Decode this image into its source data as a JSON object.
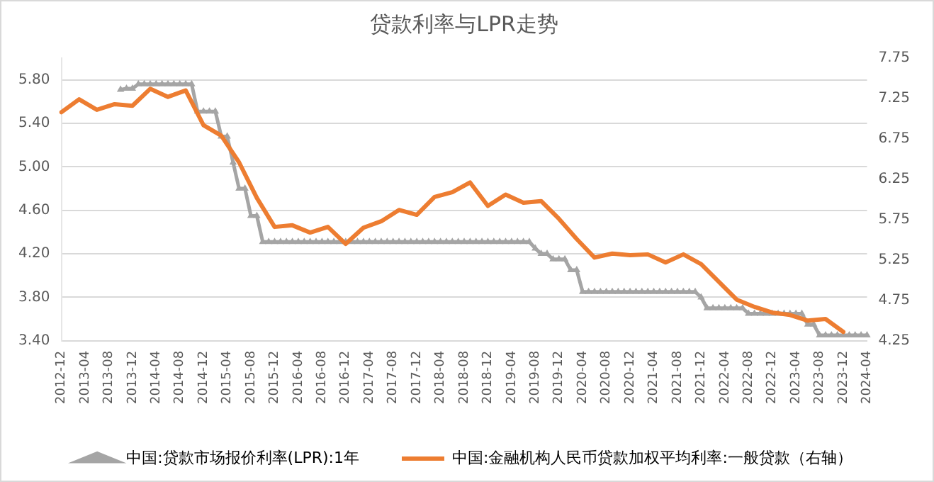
{
  "chart_data": {
    "type": "line",
    "title": "贷款利率与LPR走势",
    "categories": [
      "2012-12",
      null,
      null,
      null,
      "2013-04",
      null,
      null,
      null,
      "2013-08",
      null,
      null,
      null,
      "2013-12",
      null,
      null,
      null,
      "2014-04",
      null,
      null,
      null,
      "2014-08",
      null,
      null,
      null,
      "2014-12",
      null,
      null,
      null,
      "2015-04",
      null,
      null,
      null,
      "2015-08",
      null,
      null,
      null,
      "2015-12",
      null,
      null,
      null,
      "2016-04",
      null,
      null,
      null,
      "2016-08",
      null,
      null,
      null,
      "2016-12",
      null,
      null,
      null,
      "2017-04",
      null,
      null,
      null,
      "2017-08",
      null,
      null,
      null,
      "2017-12",
      null,
      null,
      null,
      "2018-04",
      null,
      null,
      null,
      "2018-08",
      null,
      null,
      null,
      "2018-12",
      null,
      null,
      null,
      "2019-04",
      null,
      null,
      null,
      "2019-08",
      null,
      null,
      null,
      "2019-12",
      null,
      null,
      null,
      "2020-04",
      null,
      null,
      null,
      "2020-08",
      null,
      null,
      null,
      "2020-12",
      null,
      null,
      null,
      "2021-04",
      null,
      null,
      null,
      "2021-08",
      null,
      null,
      null,
      "2021-12",
      null,
      null,
      null,
      "2022-04",
      null,
      null,
      null,
      "2022-08",
      null,
      null,
      null,
      "2022-12",
      null,
      null,
      null,
      "2023-04",
      null,
      null,
      null,
      "2023-08",
      null,
      null,
      null,
      "2023-12",
      null,
      null,
      null,
      "2024-04"
    ],
    "series": [
      {
        "name": "中国:贷款市场报价利率(LPR):1年",
        "color": "#a5a5a5",
        "marker": "triangle",
        "values": [
          null,
          null,
          null,
          null,
          null,
          null,
          null,
          null,
          null,
          null,
          5.71,
          5.72,
          5.72,
          5.76,
          5.76,
          5.76,
          5.76,
          5.76,
          5.76,
          5.76,
          5.76,
          5.76,
          5.76,
          5.51,
          5.51,
          5.51,
          5.51,
          5.28,
          5.28,
          5.04,
          4.8,
          4.8,
          4.55,
          4.55,
          4.31,
          4.31,
          4.31,
          4.31,
          4.31,
          4.31,
          4.31,
          4.31,
          4.31,
          4.31,
          4.31,
          4.31,
          4.31,
          4.31,
          4.31,
          4.31,
          4.31,
          4.31,
          4.31,
          4.31,
          4.31,
          4.31,
          4.31,
          4.31,
          4.31,
          4.31,
          4.31,
          4.31,
          4.31,
          4.31,
          4.31,
          4.31,
          4.31,
          4.31,
          4.31,
          4.31,
          4.31,
          4.31,
          4.31,
          4.31,
          4.31,
          4.31,
          4.31,
          4.31,
          4.31,
          4.31,
          4.25,
          4.2,
          4.2,
          4.15,
          4.15,
          4.15,
          4.05,
          4.05,
          3.85,
          3.85,
          3.85,
          3.85,
          3.85,
          3.85,
          3.85,
          3.85,
          3.85,
          3.85,
          3.85,
          3.85,
          3.85,
          3.85,
          3.85,
          3.85,
          3.85,
          3.85,
          3.85,
          3.85,
          3.8,
          3.7,
          3.7,
          3.7,
          3.7,
          3.7,
          3.7,
          3.7,
          3.65,
          3.65,
          3.65,
          3.65,
          3.65,
          3.65,
          3.65,
          3.65,
          3.65,
          3.65,
          3.55,
          3.55,
          3.45,
          3.45,
          3.45,
          3.45,
          3.45,
          3.45,
          3.45,
          3.45,
          3.45
        ]
      },
      {
        "name": "中国:金融机构人民币贷款加权平均利率:一般贷款（右轴）",
        "color": "#ed7d31",
        "marker": "none",
        "axis": "y2",
        "values": [
          7.08,
          null,
          null,
          7.24,
          null,
          null,
          7.11,
          null,
          null,
          7.18,
          null,
          null,
          7.16,
          null,
          null,
          7.37,
          null,
          null,
          7.27,
          null,
          null,
          7.35,
          null,
          null,
          6.92,
          null,
          null,
          6.79,
          null,
          null,
          6.46,
          null,
          null,
          6.02,
          null,
          null,
          5.66,
          null,
          null,
          5.68,
          null,
          null,
          5.59,
          null,
          null,
          5.66,
          null,
          null,
          5.45,
          null,
          null,
          5.65,
          null,
          null,
          5.73,
          null,
          null,
          5.87,
          null,
          null,
          5.81,
          null,
          null,
          6.03,
          null,
          null,
          6.09,
          null,
          null,
          6.21,
          null,
          null,
          5.92,
          null,
          null,
          6.06,
          null,
          null,
          5.96,
          null,
          null,
          5.98,
          null,
          null,
          5.76,
          null,
          null,
          5.51,
          null,
          null,
          5.28,
          null,
          null,
          5.33,
          null,
          null,
          5.31,
          null,
          null,
          5.32,
          null,
          null,
          5.22,
          null,
          null,
          5.32,
          null,
          null,
          5.2,
          null,
          null,
          4.98,
          null,
          null,
          4.76,
          null,
          null,
          4.67,
          null,
          null,
          4.6,
          null,
          null,
          4.57,
          null,
          null,
          4.5,
          null,
          null,
          4.52,
          null,
          null,
          4.36,
          null,
          null,
          null,
          null
        ]
      }
    ],
    "ylim": [
      3.4,
      6.0
    ],
    "yticks": [
      {
        "value": 3.4,
        "label": "3.40"
      },
      {
        "value": 3.8,
        "label": "3.80"
      },
      {
        "value": 4.2,
        "label": "4.20"
      },
      {
        "value": 4.6,
        "label": "4.60"
      },
      {
        "value": 5.0,
        "label": "5.00"
      },
      {
        "value": 5.4,
        "label": "5.40"
      },
      {
        "value": 5.8,
        "label": "5.80"
      }
    ],
    "y2lim": [
      4.25,
      7.75
    ],
    "y2ticks": [
      4.25,
      4.75,
      5.25,
      5.75,
      6.25,
      6.75,
      7.25,
      7.75
    ],
    "grid": "y",
    "legend": "bottom",
    "line_style": "solid"
  }
}
